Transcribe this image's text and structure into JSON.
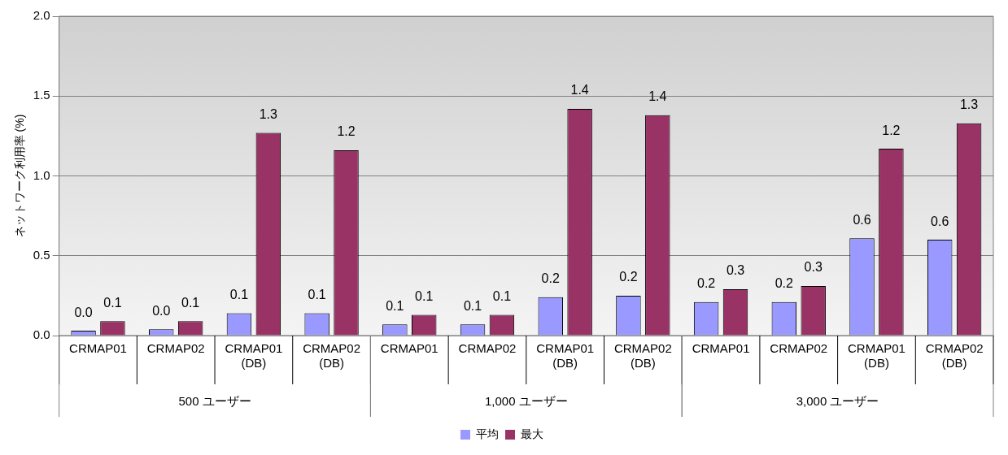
{
  "chart_data": {
    "type": "bar",
    "ylabel": "ネットワーク利用率 (%)",
    "categories": [
      "CRMAP01",
      "CRMAP02",
      "CRMAP01 (DB)",
      "CRMAP02 (DB)",
      "CRMAP01",
      "CRMAP02",
      "CRMAP01 (DB)",
      "CRMAP02 (DB)",
      "CRMAP01",
      "CRMAP02",
      "CRMAP01 (DB)",
      "CRMAP02 (DB)"
    ],
    "series": [
      {
        "name": "平均",
        "color": "#9999ff",
        "values": [
          0.03,
          0.04,
          0.14,
          0.14,
          0.07,
          0.07,
          0.24,
          0.25,
          0.21,
          0.21,
          0.61,
          0.6
        ],
        "value_labels": [
          "0.0",
          "0.0",
          "0.1",
          "0.1",
          "0.1",
          "0.1",
          "0.2",
          "0.2",
          "0.2",
          "0.2",
          "0.6",
          "0.6"
        ]
      },
      {
        "name": "最大",
        "color": "#993366",
        "values": [
          0.09,
          0.09,
          1.27,
          1.16,
          0.13,
          0.13,
          1.42,
          1.38,
          0.29,
          0.31,
          1.17,
          1.33
        ],
        "value_labels": [
          "0.1",
          "0.1",
          "1.3",
          "1.2",
          "0.1",
          "0.1",
          "1.4",
          "1.4",
          "0.3",
          "0.3",
          "1.2",
          "1.3"
        ]
      }
    ],
    "annotations": [
      "500 ユーザー",
      "1,000 ユーザー",
      "3,000 ユーザー"
    ],
    "ylim": [
      0,
      2
    ],
    "yticks": [
      {
        "value": 0,
        "label": "0.0"
      },
      {
        "value": 0.5,
        "label": "0.5"
      },
      {
        "value": 1,
        "label": "1.0"
      },
      {
        "value": 1.5,
        "label": "1.5"
      },
      {
        "value": 2,
        "label": "2.0"
      }
    ],
    "grid": "y",
    "legend": "bottom"
  }
}
